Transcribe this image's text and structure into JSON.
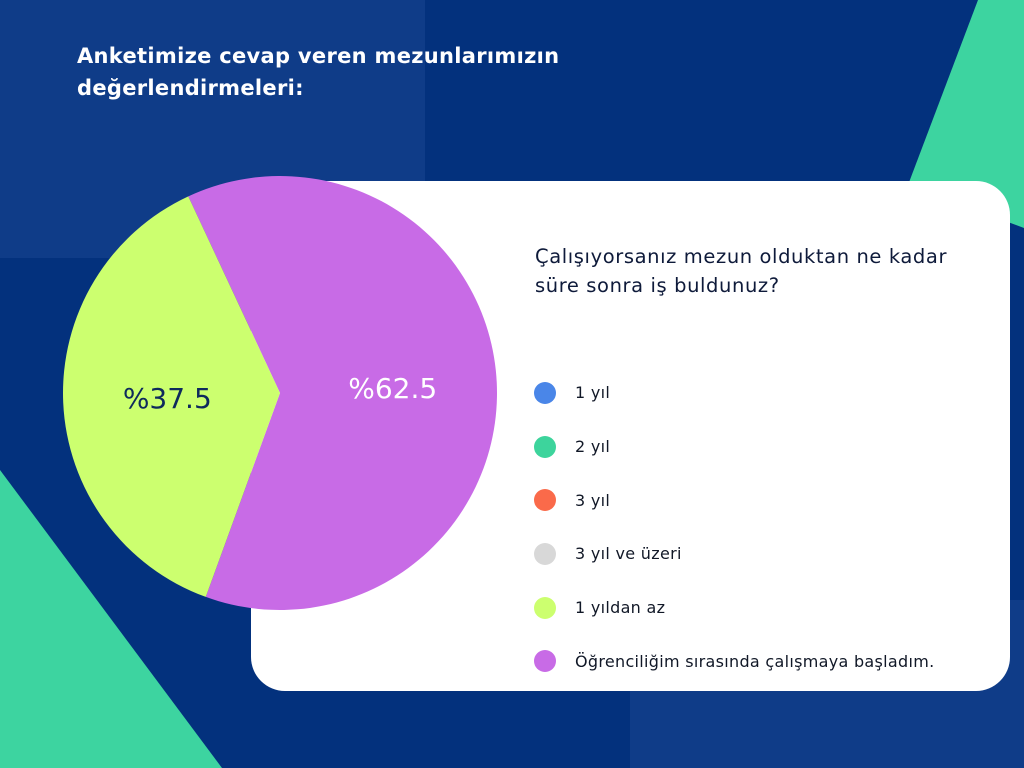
{
  "page": {
    "title": "Anketimize cevap veren mezunlarımızın değerlendirmeleri:"
  },
  "colors": {
    "background": "#03317d",
    "background_panel": "#0f3c88",
    "accent_green": "#3dd4a0",
    "card": "#ffffff"
  },
  "chart_data": {
    "type": "pie",
    "title": "Çalışıyorsanız mezun olduktan ne kadar süre sonra iş buldunuz?",
    "categories": [
      "1 yıl",
      "2 yıl",
      "3 yıl",
      "3 yıl ve üzeri",
      "1 yıldan az",
      "Öğrenciliğim sırasında çalışmaya başladım."
    ],
    "values": [
      0,
      0,
      0,
      0,
      37.5,
      62.5
    ],
    "colors": [
      "#4a86e8",
      "#3dd49c",
      "#fa6a4a",
      "#d8d8d8",
      "#ccff6f",
      "#c86be6"
    ],
    "data_labels": [
      "",
      "",
      "",
      "",
      "%37.5",
      "%62.5"
    ],
    "label_colors": [
      "",
      "",
      "",
      "",
      "#0e2a5c",
      "#ffffff"
    ],
    "legend_position": "right"
  }
}
